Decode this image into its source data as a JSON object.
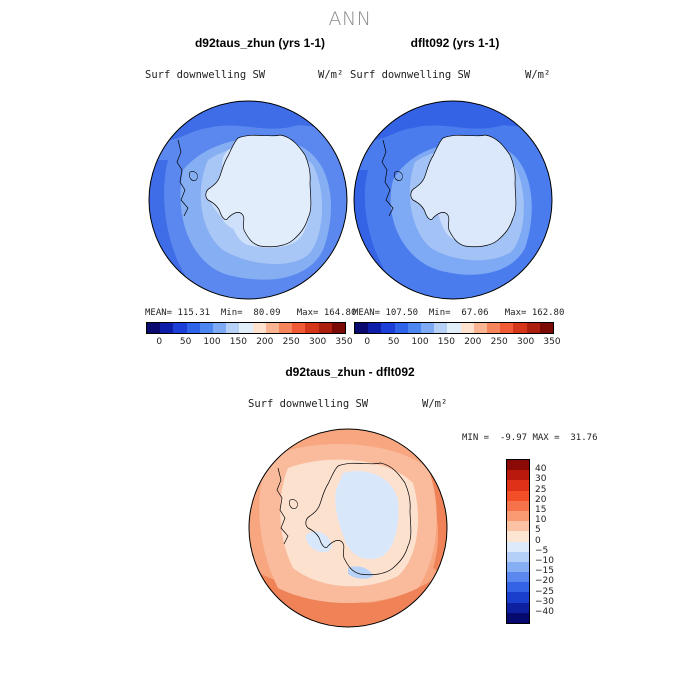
{
  "suptitle": "ANN",
  "panels": [
    {
      "title": "d92taus_zhun (yrs 1-1)",
      "variable": "Surf downwelling SW",
      "units": "W/m²",
      "mean": "115.31",
      "min": "80.09",
      "max": "164.80"
    },
    {
      "title": "dflt092 (yrs 1-1)",
      "variable": "Surf downwelling SW",
      "units": "W/m²",
      "mean": "107.50",
      "min": "67.06",
      "max": "162.80"
    }
  ],
  "diff_panel": {
    "title": "d92taus_zhun - dflt092",
    "variable": "Surf downwelling SW",
    "units": "W/m²",
    "min": "-9.97",
    "max": "31.76"
  },
  "stat_labels": {
    "mean": "MEAN=",
    "min": "Min=",
    "max": "Max=",
    "min_caps": "MIN =",
    "max_caps": "MAX ="
  },
  "colorbar_top": {
    "ticks": [
      "0",
      "50",
      "100",
      "150",
      "200",
      "250",
      "300",
      "350"
    ],
    "colors": [
      "#0a0a6e",
      "#0d1fa8",
      "#1a3ed6",
      "#2f63ea",
      "#4d86f0",
      "#7ea9f4",
      "#b7d0f7",
      "#e3eefb",
      "#fde3cf",
      "#f9b491",
      "#f6855e",
      "#f05a34",
      "#d5361a",
      "#ac1e0e",
      "#7a0a04"
    ]
  },
  "colorbar_diff": {
    "ticks": [
      "40",
      "30",
      "25",
      "20",
      "15",
      "10",
      "5",
      "0",
      "−5",
      "−10",
      "−15",
      "−20",
      "−25",
      "−30",
      "−40"
    ],
    "colors": [
      "#8b0a05",
      "#b9190d",
      "#df3118",
      "#f24e28",
      "#f6724a",
      "#f99a72",
      "#fbc2a4",
      "#fde5d4",
      "#ddeafb",
      "#b4d0f8",
      "#86aef3",
      "#5a88ee",
      "#3563e6",
      "#1a3fcc",
      "#0c20a0",
      "#060a6e"
    ]
  }
}
